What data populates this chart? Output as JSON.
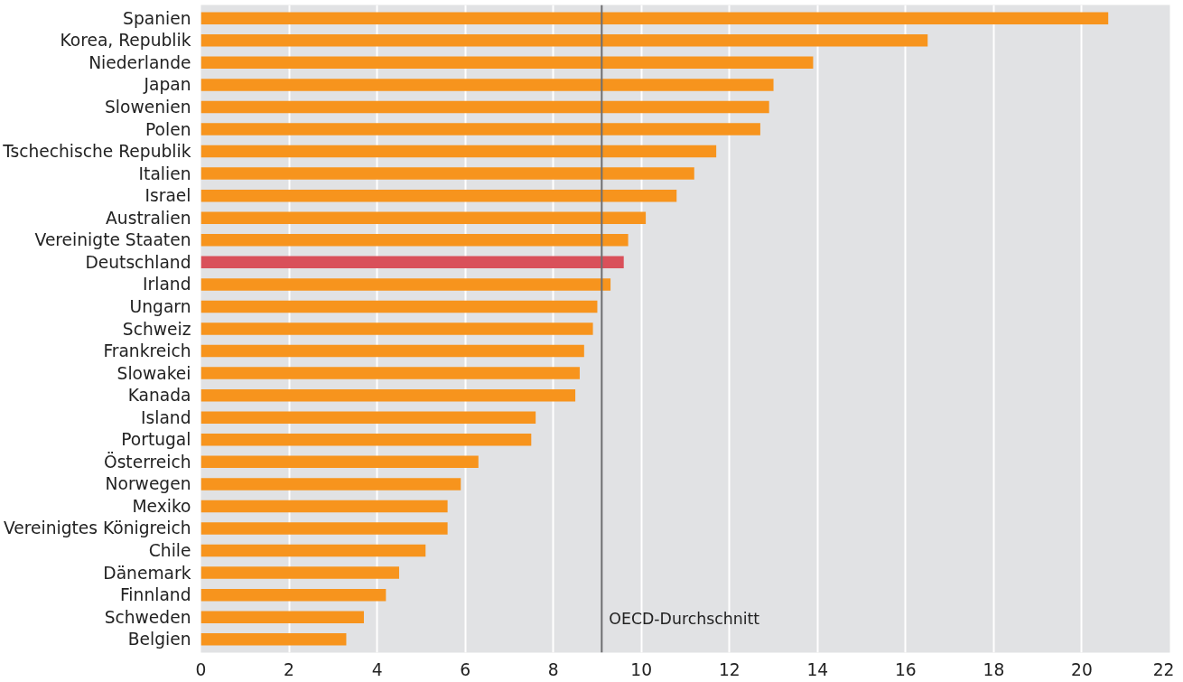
{
  "chart_data": {
    "type": "bar",
    "orientation": "horizontal",
    "categories": [
      "Spanien",
      "Korea, Republik",
      "Niederlande",
      "Japan",
      "Slowenien",
      "Polen",
      "Tschechische Republik",
      "Italien",
      "Israel",
      "Australien",
      "Vereinigte Staaten",
      "Deutschland",
      "Irland",
      "Ungarn",
      "Schweiz",
      "Frankreich",
      "Slowakei",
      "Kanada",
      "Island",
      "Portugal",
      "Österreich",
      "Norwegen",
      "Mexiko",
      "Vereinigtes Königreich",
      "Chile",
      "Dänemark",
      "Finnland",
      "Schweden",
      "Belgien"
    ],
    "values": [
      20.6,
      16.5,
      13.9,
      13.0,
      12.9,
      12.7,
      11.7,
      11.2,
      10.8,
      10.1,
      9.7,
      9.6,
      9.3,
      9.0,
      8.9,
      8.7,
      8.6,
      8.5,
      7.6,
      7.5,
      6.3,
      5.9,
      5.6,
      5.6,
      5.1,
      4.5,
      4.2,
      3.7,
      3.3
    ],
    "colors": [
      "#f7941d",
      "#f7941d",
      "#f7941d",
      "#f7941d",
      "#f7941d",
      "#f7941d",
      "#f7941d",
      "#f7941d",
      "#f7941d",
      "#f7941d",
      "#f7941d",
      "#d9505a",
      "#f7941d",
      "#f7941d",
      "#f7941d",
      "#f7941d",
      "#f7941d",
      "#f7941d",
      "#f7941d",
      "#f7941d",
      "#f7941d",
      "#f7941d",
      "#f7941d",
      "#f7941d",
      "#f7941d",
      "#f7941d",
      "#f7941d",
      "#f7941d",
      "#f7941d"
    ],
    "xlim": [
      0,
      22
    ],
    "xticks": [
      0,
      2,
      4,
      6,
      8,
      10,
      12,
      14,
      16,
      18,
      20,
      22
    ],
    "grid": "x",
    "ref_lines": [
      {
        "axis": "x",
        "value": 9.1,
        "label": "OECD-Durchschnitt",
        "color": "#6d6e70"
      }
    ]
  }
}
